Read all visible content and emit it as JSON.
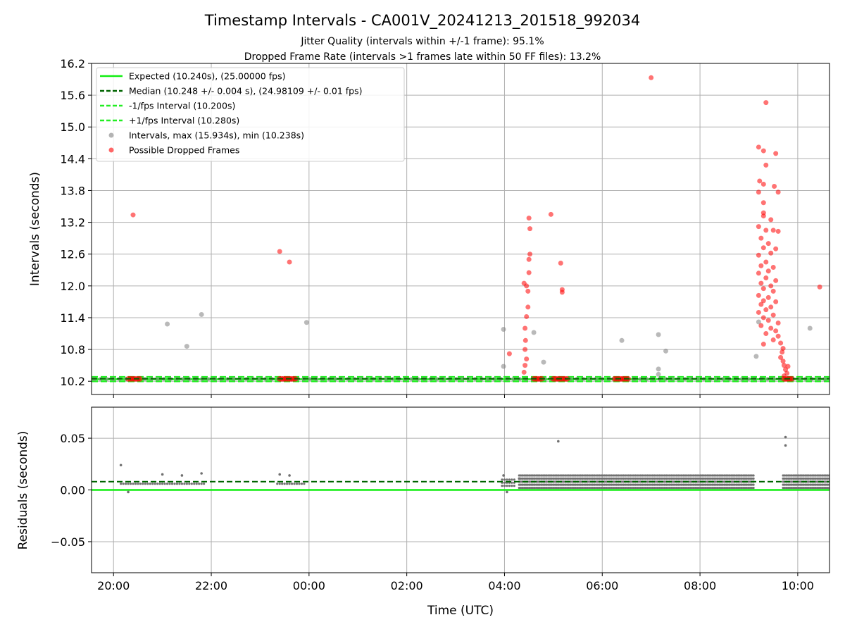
{
  "chart_data": {
    "type": "scatter",
    "title": "Timestamp Intervals - CA001V_20241213_201518_992034",
    "subtitle_1": "Jitter Quality (intervals within +/-1 frame): 95.1%",
    "subtitle_2": "Dropped Frame Rate (intervals >1 frames late within 50 FF files): 13.2%",
    "xlabel": "Time (UTC)",
    "x_ticks": [
      "20:00",
      "22:00",
      "00:00",
      "02:00",
      "04:00",
      "06:00",
      "08:00",
      "10:00"
    ],
    "x_range_hours": [
      19.55,
      34.65
    ],
    "top_panel": {
      "ylabel": "Intervals (seconds)",
      "ylim": [
        9.95,
        16.2
      ],
      "y_ticks": [
        "10.2",
        "10.8",
        "11.4",
        "12.0",
        "12.6",
        "13.2",
        "13.8",
        "14.4",
        "15.0",
        "15.6",
        "16.2"
      ],
      "grid": true,
      "legend_position": "upper-left",
      "lines": {
        "expected": 10.24,
        "median": 10.248,
        "minus_1fps": 10.2,
        "plus_1fps": 10.28
      },
      "legend": [
        "Expected (10.240s), (25.00000 fps)",
        "Median (10.248 +/- 0.004 s), (24.98109 +/- 0.01 fps)",
        "-1/fps Interval (10.200s)",
        "+1/fps Interval (10.280s)",
        "Intervals, max (15.934s), min (10.238s)",
        "Possible Dropped Frames"
      ],
      "intervals_outliers": [
        [
          21.1,
          11.28
        ],
        [
          21.5,
          10.86
        ],
        [
          21.8,
          11.46
        ],
        [
          23.95,
          11.31
        ],
        [
          27.98,
          11.18
        ],
        [
          27.98,
          10.48
        ],
        [
          28.6,
          11.12
        ],
        [
          28.8,
          10.56
        ],
        [
          30.4,
          10.97
        ],
        [
          31.15,
          11.08
        ],
        [
          31.15,
          10.43
        ],
        [
          31.15,
          10.33
        ],
        [
          31.3,
          10.77
        ],
        [
          33.15,
          10.67
        ],
        [
          33.2,
          11.32
        ],
        [
          34.25,
          11.2
        ]
      ],
      "dropped_frames": [
        [
          20.4,
          13.34
        ],
        [
          23.4,
          12.65
        ],
        [
          23.6,
          12.45
        ],
        [
          28.1,
          10.72
        ],
        [
          28.4,
          12.05
        ],
        [
          28.45,
          12.0
        ],
        [
          28.5,
          13.28
        ],
        [
          28.52,
          13.08
        ],
        [
          28.52,
          12.6
        ],
        [
          28.5,
          12.5
        ],
        [
          28.5,
          12.25
        ],
        [
          28.48,
          11.9
        ],
        [
          28.48,
          11.6
        ],
        [
          28.45,
          11.42
        ],
        [
          28.42,
          11.2
        ],
        [
          28.43,
          10.97
        ],
        [
          28.42,
          10.8
        ],
        [
          28.45,
          10.62
        ],
        [
          28.42,
          10.5
        ],
        [
          28.4,
          10.37
        ],
        [
          28.95,
          13.35
        ],
        [
          29.15,
          12.43
        ],
        [
          29.18,
          11.93
        ],
        [
          29.18,
          11.88
        ],
        [
          34.45,
          11.98
        ],
        [
          31.0,
          15.93
        ],
        [
          33.35,
          15.46
        ],
        [
          33.2,
          14.62
        ],
        [
          33.3,
          14.55
        ],
        [
          33.55,
          14.5
        ],
        [
          33.35,
          14.28
        ],
        [
          33.22,
          13.98
        ],
        [
          33.3,
          13.92
        ],
        [
          33.52,
          13.88
        ],
        [
          33.6,
          13.77
        ],
        [
          33.2,
          13.77
        ],
        [
          33.3,
          13.57
        ],
        [
          33.3,
          13.38
        ],
        [
          33.3,
          13.32
        ],
        [
          33.45,
          13.25
        ],
        [
          33.2,
          13.12
        ],
        [
          33.35,
          13.05
        ],
        [
          33.5,
          13.05
        ],
        [
          33.6,
          13.03
        ],
        [
          33.25,
          12.9
        ],
        [
          33.4,
          12.8
        ],
        [
          33.55,
          12.7
        ],
        [
          33.3,
          12.72
        ],
        [
          33.2,
          12.58
        ],
        [
          33.45,
          12.62
        ],
        [
          33.35,
          12.45
        ],
        [
          33.25,
          12.38
        ],
        [
          33.5,
          12.35
        ],
        [
          33.4,
          12.28
        ],
        [
          33.2,
          12.24
        ],
        [
          33.35,
          12.15
        ],
        [
          33.55,
          12.1
        ],
        [
          33.25,
          12.05
        ],
        [
          33.45,
          12.0
        ],
        [
          33.3,
          11.95
        ],
        [
          33.5,
          11.9
        ],
        [
          33.2,
          11.82
        ],
        [
          33.4,
          11.78
        ],
        [
          33.3,
          11.72
        ],
        [
          33.55,
          11.7
        ],
        [
          33.25,
          11.65
        ],
        [
          33.45,
          11.6
        ],
        [
          33.35,
          11.55
        ],
        [
          33.2,
          11.5
        ],
        [
          33.5,
          11.45
        ],
        [
          33.3,
          11.4
        ],
        [
          33.4,
          11.35
        ],
        [
          33.6,
          11.3
        ],
        [
          33.25,
          11.25
        ],
        [
          33.45,
          11.2
        ],
        [
          33.55,
          11.15
        ],
        [
          33.35,
          11.1
        ],
        [
          33.6,
          11.05
        ],
        [
          33.5,
          10.98
        ],
        [
          33.65,
          10.92
        ],
        [
          33.3,
          10.9
        ],
        [
          33.7,
          10.82
        ],
        [
          33.68,
          10.75
        ],
        [
          33.65,
          10.65
        ],
        [
          33.7,
          10.58
        ],
        [
          33.72,
          10.5
        ],
        [
          33.8,
          10.48
        ],
        [
          33.75,
          10.42
        ],
        [
          33.78,
          10.35
        ],
        [
          33.72,
          10.3
        ]
      ],
      "baseline_dropped_clusters": [
        [
          20.3,
          20.55
        ],
        [
          23.4,
          23.75
        ],
        [
          28.6,
          28.78
        ],
        [
          29.0,
          29.3
        ],
        [
          30.25,
          30.55
        ],
        [
          33.72,
          33.9
        ]
      ]
    },
    "bottom_panel": {
      "ylabel": "Residuals (seconds)",
      "ylim": [
        -0.08,
        0.08
      ],
      "y_ticks": [
        "0.05",
        "0.00",
        "−0.05"
      ],
      "y_tick_values": [
        0.05,
        0.0,
        -0.05
      ],
      "expected_residual": 0.0,
      "median_residual": 0.008,
      "residual_outliers": [
        [
          20.15,
          0.024
        ],
        [
          20.3,
          -0.002
        ],
        [
          21.0,
          0.015
        ],
        [
          21.4,
          0.014
        ],
        [
          21.8,
          0.016
        ],
        [
          23.4,
          0.015
        ],
        [
          23.6,
          0.014
        ],
        [
          27.98,
          0.014
        ],
        [
          28.05,
          -0.002
        ],
        [
          28.3,
          0.011
        ],
        [
          29.1,
          0.047
        ],
        [
          33.75,
          0.051
        ],
        [
          33.75,
          0.043
        ]
      ]
    }
  }
}
